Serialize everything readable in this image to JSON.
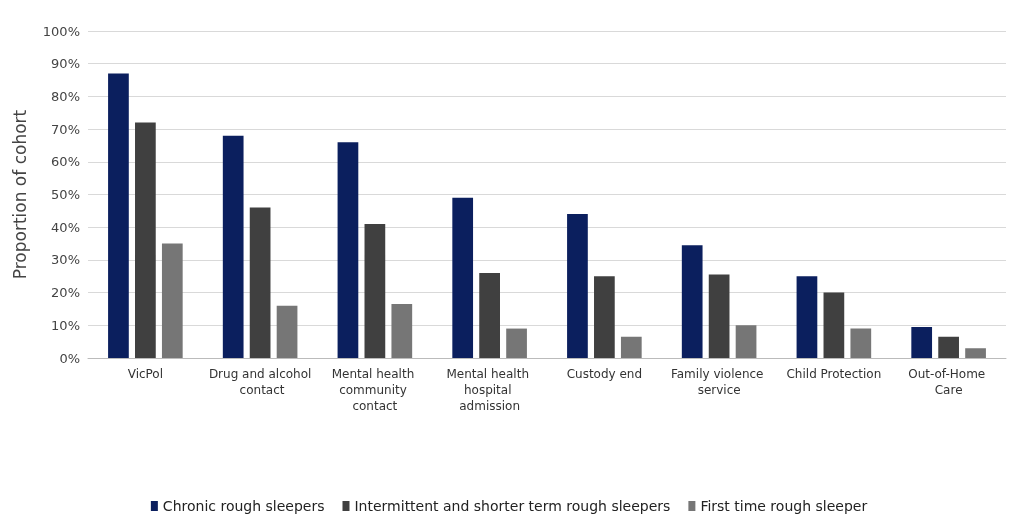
{
  "chart_data": {
    "type": "bar",
    "ylabel": "Proportion of cohort",
    "categories": [
      "VicPol",
      "Drug and alcohol contact",
      "Mental health community contact",
      "Mental health hospital admission",
      "Custody end",
      "Family violence service",
      "Child Protection",
      "Out-of-Home Care"
    ],
    "series": [
      {
        "name": "Chronic rough sleepers",
        "color": "#0b1f5e",
        "values": [
          87,
          68,
          66,
          49,
          44,
          34.5,
          25,
          9.5
        ]
      },
      {
        "name": "Intermittent and shorter term rough sleepers",
        "color": "#404040",
        "values": [
          72,
          46,
          41,
          26,
          25,
          25.5,
          20,
          6.5
        ]
      },
      {
        "name": "First time rough sleeper",
        "color": "#767676",
        "values": [
          35,
          16,
          16.5,
          9,
          6.5,
          10,
          9,
          3
        ]
      }
    ],
    "ylim": [
      0,
      100
    ],
    "yticks": [
      {
        "value": 0,
        "label": "0%"
      },
      {
        "value": 10,
        "label": "10%"
      },
      {
        "value": 20,
        "label": "20%"
      },
      {
        "value": 30,
        "label": "30%"
      },
      {
        "value": 40,
        "label": "40%"
      },
      {
        "value": 50,
        "label": "50%"
      },
      {
        "value": 60,
        "label": "60%"
      },
      {
        "value": 70,
        "label": "70%"
      },
      {
        "value": 80,
        "label": "80%"
      },
      {
        "value": 90,
        "label": "90%"
      },
      {
        "value": 100,
        "label": "100%"
      }
    ],
    "grid": "y",
    "legend": "bottom"
  }
}
